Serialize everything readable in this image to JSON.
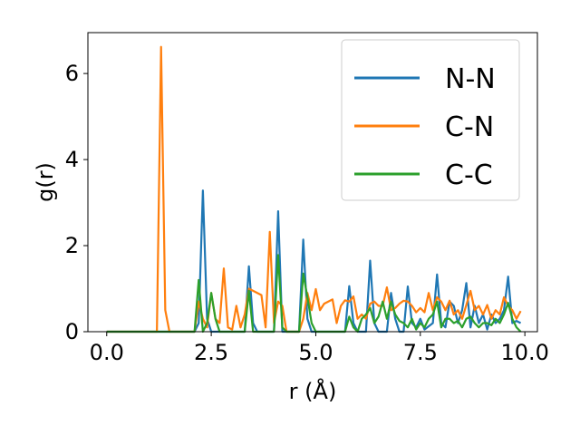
{
  "chart_data": {
    "type": "line",
    "xlabel": "r (Å)",
    "ylabel": "g(r)",
    "xlim": [
      -0.45,
      10.3
    ],
    "ylim": [
      0,
      6.95
    ],
    "x_ticks": [
      0.0,
      2.5,
      5.0,
      7.5,
      10.0
    ],
    "x_tick_labels": [
      "0.0",
      "2.5",
      "5.0",
      "7.5",
      "10.0"
    ],
    "y_ticks": [
      0,
      2,
      4,
      6
    ],
    "y_tick_labels": [
      "0",
      "2",
      "4",
      "6"
    ],
    "grid": false,
    "legend": {
      "position": "upper right"
    },
    "series": [
      {
        "name": "N-N",
        "color": "#1f77b4",
        "points": [
          [
            0.0,
            0
          ],
          [
            2.1,
            0
          ],
          [
            2.2,
            0.2
          ],
          [
            2.3,
            3.28
          ],
          [
            2.4,
            0.3
          ],
          [
            2.5,
            0
          ],
          [
            3.3,
            0
          ],
          [
            3.4,
            1.52
          ],
          [
            3.5,
            0.2
          ],
          [
            3.6,
            0
          ],
          [
            4.0,
            0
          ],
          [
            4.1,
            2.8
          ],
          [
            4.2,
            0
          ],
          [
            4.6,
            0
          ],
          [
            4.7,
            2.14
          ],
          [
            4.8,
            0.3
          ],
          [
            4.9,
            0
          ],
          [
            5.7,
            0
          ],
          [
            5.8,
            1.06
          ],
          [
            5.9,
            0.2
          ],
          [
            6.0,
            0
          ],
          [
            6.2,
            0
          ],
          [
            6.3,
            1.65
          ],
          [
            6.4,
            0.2
          ],
          [
            6.5,
            0
          ],
          [
            6.7,
            0
          ],
          [
            6.8,
            0.9
          ],
          [
            6.9,
            0.3
          ],
          [
            7.0,
            0
          ],
          [
            7.1,
            0
          ],
          [
            7.2,
            1.05
          ],
          [
            7.3,
            0.2
          ],
          [
            7.4,
            0.1
          ],
          [
            7.5,
            0.3
          ],
          [
            7.6,
            0.05
          ],
          [
            7.8,
            0.2
          ],
          [
            7.9,
            1.33
          ],
          [
            8.0,
            0.2
          ],
          [
            8.1,
            0.1
          ],
          [
            8.2,
            0.7
          ],
          [
            8.3,
            0.6
          ],
          [
            8.4,
            0.2
          ],
          [
            8.5,
            0.5
          ],
          [
            8.6,
            1.13
          ],
          [
            8.7,
            0.1
          ],
          [
            8.8,
            0.6
          ],
          [
            8.9,
            0.2
          ],
          [
            9.0,
            0.4
          ],
          [
            9.1,
            0.05
          ],
          [
            9.2,
            0.4
          ],
          [
            9.3,
            0.2
          ],
          [
            9.4,
            0.3
          ],
          [
            9.5,
            0.5
          ],
          [
            9.6,
            1.28
          ],
          [
            9.7,
            0.2
          ],
          [
            9.8,
            0.25
          ],
          [
            9.9,
            0.2
          ]
        ]
      },
      {
        "name": "C-N",
        "color": "#ff7f0e",
        "points": [
          [
            0.0,
            0
          ],
          [
            1.2,
            0
          ],
          [
            1.3,
            6.62
          ],
          [
            1.4,
            0.5
          ],
          [
            1.5,
            0
          ],
          [
            2.1,
            0
          ],
          [
            2.2,
            0.7
          ],
          [
            2.3,
            0.3
          ],
          [
            2.4,
            0.1
          ],
          [
            2.5,
            0.9
          ],
          [
            2.6,
            0.3
          ],
          [
            2.7,
            0.2
          ],
          [
            2.8,
            1.47
          ],
          [
            2.9,
            0.1
          ],
          [
            3.0,
            0.05
          ],
          [
            3.1,
            0.6
          ],
          [
            3.2,
            0.1
          ],
          [
            3.3,
            0.4
          ],
          [
            3.4,
            1.0
          ],
          [
            3.5,
            0.95
          ],
          [
            3.6,
            0.9
          ],
          [
            3.7,
            0.85
          ],
          [
            3.8,
            0.1
          ],
          [
            3.9,
            2.32
          ],
          [
            4.0,
            0.2
          ],
          [
            4.1,
            0.7
          ],
          [
            4.2,
            0.6
          ],
          [
            4.3,
            0
          ],
          [
            4.6,
            0
          ],
          [
            4.7,
            0.3
          ],
          [
            4.8,
            0.9
          ],
          [
            4.9,
            0.5
          ],
          [
            5.0,
            0.99
          ],
          [
            5.1,
            0.5
          ],
          [
            5.2,
            0.65
          ],
          [
            5.3,
            0.7
          ],
          [
            5.4,
            0.75
          ],
          [
            5.5,
            0.2
          ],
          [
            5.6,
            0.6
          ],
          [
            5.7,
            0.73
          ],
          [
            5.8,
            0.7
          ],
          [
            5.9,
            0.82
          ],
          [
            6.0,
            0.3
          ],
          [
            6.1,
            0.4
          ],
          [
            6.2,
            0.3
          ],
          [
            6.3,
            0.65
          ],
          [
            6.4,
            0.7
          ],
          [
            6.5,
            0.6
          ],
          [
            6.6,
            0.6
          ],
          [
            6.7,
            1.03
          ],
          [
            6.8,
            0.5
          ],
          [
            6.9,
            0.55
          ],
          [
            7.0,
            0.65
          ],
          [
            7.1,
            0.72
          ],
          [
            7.2,
            0.7
          ],
          [
            7.3,
            0.6
          ],
          [
            7.4,
            0.45
          ],
          [
            7.5,
            0.55
          ],
          [
            7.6,
            0.45
          ],
          [
            7.7,
            0.9
          ],
          [
            7.8,
            0.5
          ],
          [
            7.9,
            0.8
          ],
          [
            8.0,
            0.7
          ],
          [
            8.1,
            0.5
          ],
          [
            8.2,
            0.72
          ],
          [
            8.3,
            0.4
          ],
          [
            8.4,
            0.5
          ],
          [
            8.5,
            0.3
          ],
          [
            8.6,
            0.62
          ],
          [
            8.7,
            0.95
          ],
          [
            8.8,
            0.5
          ],
          [
            8.9,
            0.6
          ],
          [
            9.0,
            0.4
          ],
          [
            9.1,
            0.62
          ],
          [
            9.2,
            0.3
          ],
          [
            9.3,
            0.5
          ],
          [
            9.4,
            0.4
          ],
          [
            9.5,
            0.8
          ],
          [
            9.6,
            0.6
          ],
          [
            9.7,
            0.5
          ],
          [
            9.8,
            0.3
          ],
          [
            9.9,
            0.48
          ]
        ]
      },
      {
        "name": "C-C",
        "color": "#2ca02c",
        "points": [
          [
            0.0,
            0
          ],
          [
            2.1,
            0
          ],
          [
            2.2,
            1.2
          ],
          [
            2.3,
            0
          ],
          [
            2.4,
            0.2
          ],
          [
            2.5,
            0.9
          ],
          [
            2.6,
            0.3
          ],
          [
            2.7,
            0
          ],
          [
            3.3,
            0
          ],
          [
            3.4,
            0.95
          ],
          [
            3.5,
            0
          ],
          [
            4.0,
            0
          ],
          [
            4.1,
            1.78
          ],
          [
            4.2,
            0.1
          ],
          [
            4.3,
            0
          ],
          [
            4.6,
            0
          ],
          [
            4.7,
            1.35
          ],
          [
            4.8,
            0.8
          ],
          [
            4.9,
            0.2
          ],
          [
            5.0,
            0
          ],
          [
            5.7,
            0
          ],
          [
            5.8,
            0.35
          ],
          [
            5.9,
            0.1
          ],
          [
            6.0,
            0
          ],
          [
            6.1,
            0.3
          ],
          [
            6.2,
            0.4
          ],
          [
            6.3,
            0.55
          ],
          [
            6.4,
            0.2
          ],
          [
            6.5,
            0.35
          ],
          [
            6.6,
            0.7
          ],
          [
            6.7,
            0.3
          ],
          [
            6.8,
            0.7
          ],
          [
            6.9,
            0.4
          ],
          [
            7.0,
            0.25
          ],
          [
            7.1,
            0.2
          ],
          [
            7.2,
            0.1
          ],
          [
            7.3,
            0.3
          ],
          [
            7.4,
            0.05
          ],
          [
            7.5,
            0.2
          ],
          [
            7.6,
            0.1
          ],
          [
            7.7,
            0.3
          ],
          [
            7.8,
            0.4
          ],
          [
            7.9,
            0.7
          ],
          [
            8.0,
            0.1
          ],
          [
            8.1,
            0.3
          ],
          [
            8.2,
            0.3
          ],
          [
            8.3,
            0.2
          ],
          [
            8.4,
            0.25
          ],
          [
            8.5,
            0.1
          ],
          [
            8.6,
            0.3
          ],
          [
            8.7,
            0.35
          ],
          [
            8.8,
            0.2
          ],
          [
            8.9,
            0.1
          ],
          [
            9.0,
            0.2
          ],
          [
            9.1,
            0.2
          ],
          [
            9.2,
            0.15
          ],
          [
            9.3,
            0.3
          ],
          [
            9.4,
            0.2
          ],
          [
            9.5,
            0.4
          ],
          [
            9.6,
            0.67
          ],
          [
            9.7,
            0.3
          ],
          [
            9.8,
            0.1
          ],
          [
            9.9,
            0.0
          ]
        ]
      }
    ]
  }
}
